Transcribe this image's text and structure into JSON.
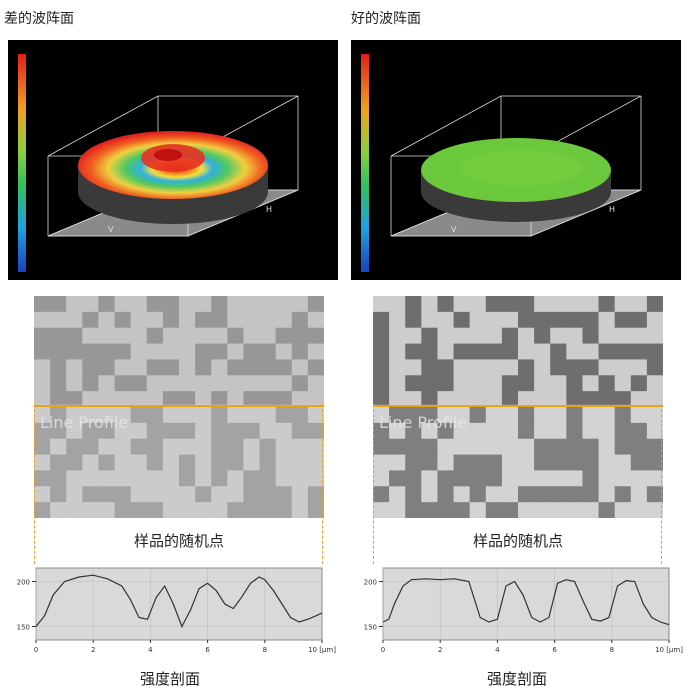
{
  "left": {
    "title": "差的波阵面",
    "sample_label": "样品的随机点",
    "profile_label": "强度剖面",
    "overlay_text": "Line Profile",
    "axis_h": "H",
    "axis_v": "V"
  },
  "right": {
    "title": "好的波阵面",
    "sample_label": "样品的随机点",
    "profile_label": "强度剖面",
    "overlay_text": "Line Profile",
    "axis_h": "H",
    "axis_v": "V"
  },
  "chart_data": [
    {
      "type": "line",
      "name": "left-profile",
      "x": [
        0,
        0.3,
        0.6,
        1,
        1.5,
        2,
        2.5,
        3,
        3.3,
        3.6,
        3.9,
        4.2,
        4.5,
        4.8,
        5.1,
        5.4,
        5.7,
        6,
        6.3,
        6.6,
        6.9,
        7.2,
        7.5,
        7.8,
        8,
        8.3,
        8.6,
        8.9,
        9.2,
        9.5,
        9.8,
        10
      ],
      "y": [
        150,
        162,
        185,
        200,
        205,
        207,
        203,
        195,
        180,
        160,
        158,
        182,
        195,
        175,
        150,
        168,
        192,
        198,
        190,
        175,
        170,
        183,
        198,
        205,
        202,
        190,
        175,
        160,
        155,
        158,
        162,
        165
      ],
      "x_ticks": [
        "0",
        "2",
        "4",
        "6",
        "8",
        "10 [μm]"
      ],
      "y_ticks": [
        "150",
        "200"
      ],
      "ylim": [
        135,
        215
      ],
      "xlim": [
        0,
        10
      ]
    },
    {
      "type": "line",
      "name": "right-profile",
      "x": [
        0,
        0.2,
        0.4,
        0.7,
        1,
        1.5,
        2,
        2.5,
        3,
        3.2,
        3.4,
        3.7,
        4,
        4.3,
        4.6,
        4.9,
        5.2,
        5.5,
        5.8,
        6.1,
        6.4,
        6.7,
        7,
        7.3,
        7.6,
        7.9,
        8.2,
        8.5,
        8.8,
        9.1,
        9.4,
        9.7,
        10
      ],
      "y": [
        155,
        158,
        175,
        195,
        202,
        203,
        202,
        203,
        200,
        180,
        160,
        155,
        158,
        195,
        200,
        185,
        160,
        155,
        160,
        198,
        202,
        200,
        178,
        158,
        156,
        160,
        195,
        201,
        200,
        175,
        160,
        155,
        152
      ],
      "x_ticks": [
        "0",
        "2",
        "4",
        "6",
        "8",
        "10 [μm]"
      ],
      "y_ticks": [
        "150",
        "200"
      ],
      "ylim": [
        135,
        215
      ],
      "xlim": [
        0,
        10
      ]
    }
  ]
}
